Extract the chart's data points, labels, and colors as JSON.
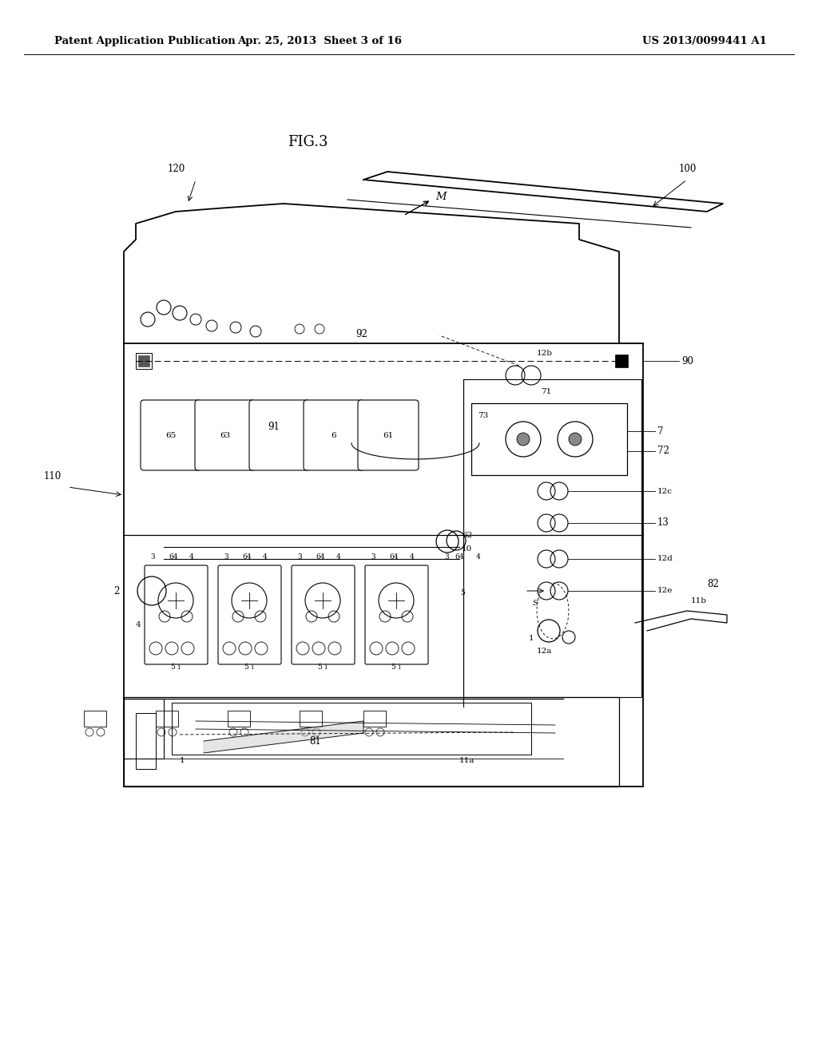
{
  "background_color": "#ffffff",
  "header_left": "Patent Application Publication",
  "header_center": "Apr. 25, 2013  Sheet 3 of 16",
  "header_right": "US 2013/0099441 A1",
  "fig_label": "FIG.3",
  "header_fontsize": 9.5,
  "fig_label_fontsize": 13,
  "label_fontsize": 8.5,
  "small_fontsize": 7.5
}
